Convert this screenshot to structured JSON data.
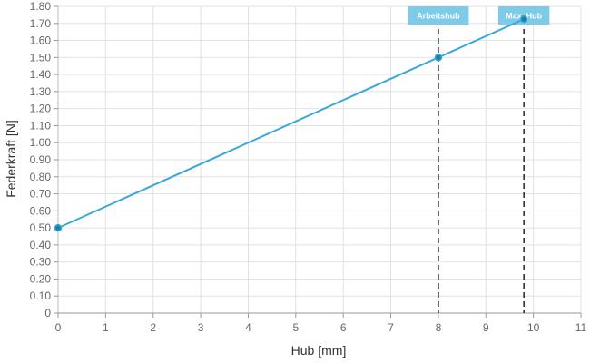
{
  "chart_data": {
    "type": "line",
    "title": "",
    "xlabel": "Hub [mm]",
    "ylabel": "Federkraft [N]",
    "xlim": [
      0,
      11
    ],
    "ylim": [
      0,
      1.8
    ],
    "x_ticks": [
      "0",
      "1",
      "2",
      "3",
      "4",
      "5",
      "6",
      "7",
      "8",
      "9",
      "10",
      "11"
    ],
    "y_ticks": [
      "0",
      "0.10",
      "0.20",
      "0.30",
      "0.40",
      "0.50",
      "0.60",
      "0.70",
      "0.80",
      "0.90",
      "1.00",
      "1.10",
      "1.20",
      "1.30",
      "1.40",
      "1.50",
      "1.60",
      "1.70",
      "1.80"
    ],
    "grid": true,
    "series": [
      {
        "color": "#3aa8d8",
        "points": [
          [
            0,
            0.5
          ],
          [
            8,
            1.5
          ],
          [
            9.8,
            1.725
          ]
        ]
      }
    ],
    "markers": [
      {
        "label": "Arbeitshub",
        "x": 8,
        "color": "#7ecbe8"
      },
      {
        "label": "Max. Hub",
        "x": 9.8,
        "color": "#7ecbe8"
      }
    ]
  }
}
